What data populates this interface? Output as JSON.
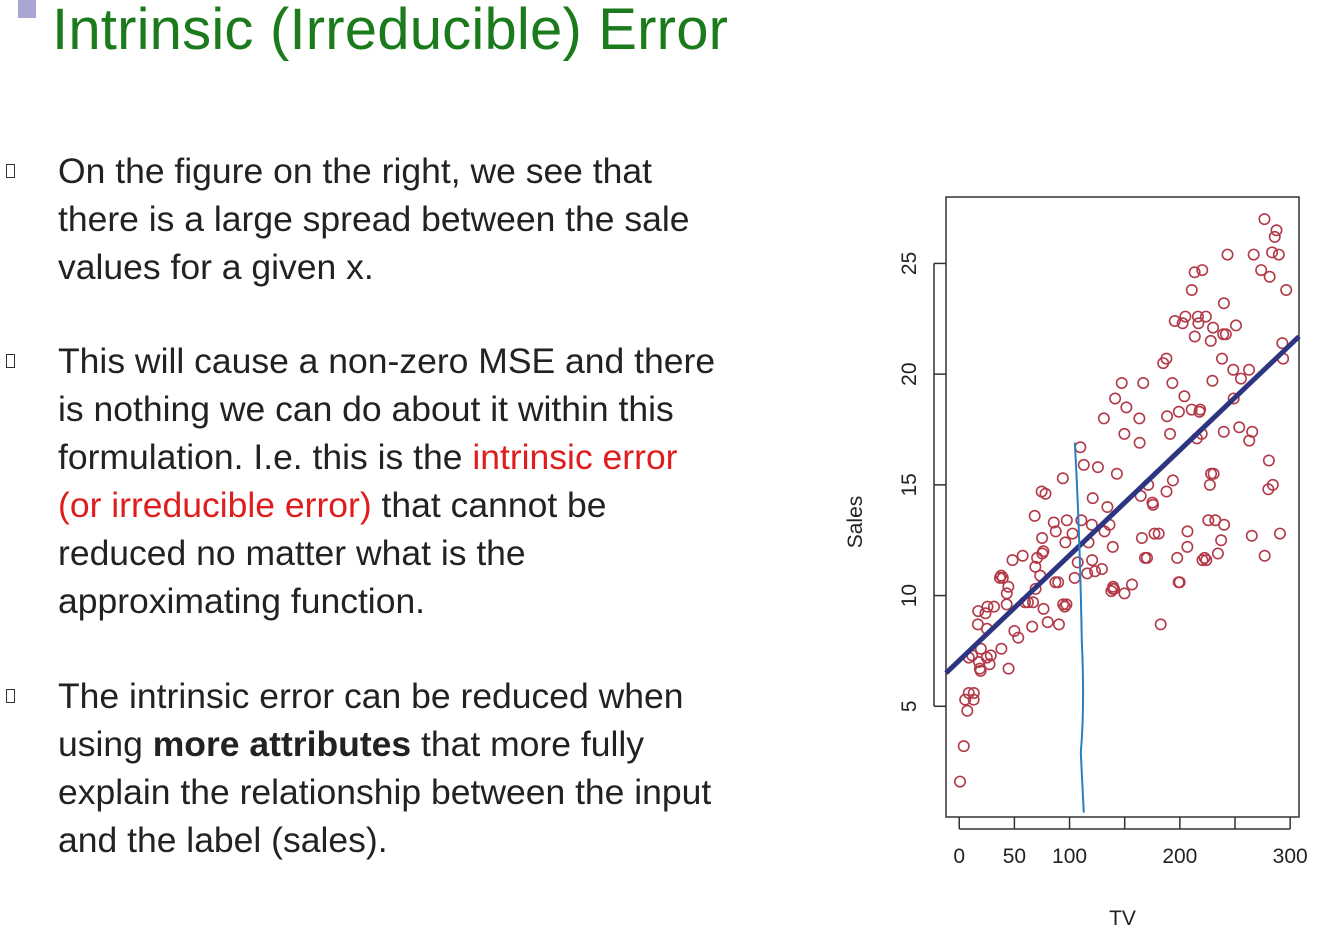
{
  "slide": {
    "title": "Intrinsic (Irreducible) Error",
    "bullets": [
      {
        "lines": [
          [
            {
              "text": "On the figure on the right, we see that"
            }
          ],
          [
            {
              "text": "there is a large spread between the sale"
            }
          ],
          [
            {
              "text": "values for a given x."
            }
          ]
        ]
      },
      {
        "lines": [
          [
            {
              "text": "This will cause a non-zero MSE and there"
            }
          ],
          [
            {
              "text": "is nothing we can do about it within this"
            }
          ],
          [
            {
              "text": "formulation. I.e. this is the "
            },
            {
              "text": "intrinsic error",
              "style": "red"
            }
          ],
          [
            {
              "text": "(or irreducible error)",
              "style": "red"
            },
            {
              "text": " that cannot be"
            }
          ],
          [
            {
              "text": "reduced no matter what is the"
            }
          ],
          [
            {
              "text": "approximating function."
            }
          ]
        ]
      },
      {
        "lines": [
          [
            {
              "text": "The intrinsic error can be reduced when"
            }
          ],
          [
            {
              "text": "using "
            },
            {
              "text": "more attributes",
              "style": "bold"
            },
            {
              "text": " that more fully"
            }
          ],
          [
            {
              "text": "explain the relationship between the input"
            }
          ],
          [
            {
              "text": "and the label (sales)."
            }
          ]
        ]
      }
    ]
  },
  "colors": {
    "title": "#1b7a1b",
    "highlight": "#e01d1d",
    "points": "#b23a48",
    "fit_line": "#2e3580",
    "spread_line": "#2a7fc0"
  },
  "chart_data": {
    "type": "scatter",
    "xlabel": "TV",
    "ylabel": "Sales",
    "xlim": [
      -12,
      308
    ],
    "ylim": [
      0,
      28
    ],
    "xticks": [
      0,
      50,
      100,
      150,
      200,
      250,
      300
    ],
    "xtick_labels": [
      "0",
      "50",
      "100",
      "",
      "200",
      "",
      "300"
    ],
    "yticks": [
      5,
      10,
      15,
      20,
      25
    ],
    "ytick_labels": [
      "5",
      "10",
      "15",
      "20",
      "25"
    ],
    "grid": false,
    "fit_line": {
      "x": [
        -12,
        308
      ],
      "y": [
        6.5,
        21.7
      ]
    },
    "spread_line": {
      "x": 112,
      "y_top": 17.0,
      "y_bottom": 0.2
    },
    "points": [
      [
        0.7,
        1.6
      ],
      [
        4.1,
        3.2
      ],
      [
        5.4,
        5.3
      ],
      [
        7.3,
        4.8
      ],
      [
        8.6,
        5.6
      ],
      [
        8.7,
        7.2
      ],
      [
        11.7,
        7.3
      ],
      [
        13.1,
        5.3
      ],
      [
        13.2,
        5.6
      ],
      [
        16.9,
        8.7
      ],
      [
        17.2,
        9.3
      ],
      [
        17.9,
        7.0
      ],
      [
        18.7,
        6.7
      ],
      [
        19.4,
        6.6
      ],
      [
        19.6,
        7.6
      ],
      [
        23.8,
        9.2
      ],
      [
        25.0,
        7.2
      ],
      [
        25.1,
        8.5
      ],
      [
        25.6,
        9.5
      ],
      [
        27.5,
        6.9
      ],
      [
        28.6,
        7.3
      ],
      [
        31.5,
        9.5
      ],
      [
        36.9,
        10.8
      ],
      [
        38.0,
        10.9
      ],
      [
        38.2,
        7.6
      ],
      [
        39.5,
        10.8
      ],
      [
        43.0,
        9.6
      ],
      [
        43.1,
        10.1
      ],
      [
        44.5,
        10.4
      ],
      [
        44.7,
        6.7
      ],
      [
        48.3,
        11.6
      ],
      [
        50.0,
        8.4
      ],
      [
        53.5,
        8.1
      ],
      [
        57.5,
        11.8
      ],
      [
        59.6,
        9.7
      ],
      [
        62.3,
        9.7
      ],
      [
        66.1,
        8.6
      ],
      [
        66.9,
        9.7
      ],
      [
        68.4,
        13.6
      ],
      [
        69.0,
        11.3
      ],
      [
        69.2,
        10.3
      ],
      [
        70.6,
        11.7
      ],
      [
        73.4,
        10.9
      ],
      [
        74.7,
        14.7
      ],
      [
        75.1,
        12.6
      ],
      [
        75.3,
        11.9
      ],
      [
        76.3,
        12.0
      ],
      [
        76.4,
        9.4
      ],
      [
        78.2,
        14.6
      ],
      [
        80.2,
        8.8
      ],
      [
        85.7,
        13.3
      ],
      [
        87.2,
        10.6
      ],
      [
        87.5,
        12.9
      ],
      [
        89.7,
        10.6
      ],
      [
        90.4,
        8.7
      ],
      [
        93.9,
        15.3
      ],
      [
        94.2,
        9.6
      ],
      [
        95.7,
        9.5
      ],
      [
        96.2,
        12.4
      ],
      [
        97.2,
        9.6
      ],
      [
        97.5,
        13.4
      ],
      [
        102.7,
        12.8
      ],
      [
        104.6,
        10.8
      ],
      [
        107.4,
        11.5
      ],
      [
        109.8,
        16.7
      ],
      [
        110.7,
        13.4
      ],
      [
        112.9,
        15.9
      ],
      [
        116.0,
        11.0
      ],
      [
        117.2,
        12.4
      ],
      [
        120.2,
        13.2
      ],
      [
        120.5,
        11.6
      ],
      [
        121.0,
        14.4
      ],
      [
        123.1,
        11.1
      ],
      [
        125.7,
        15.8
      ],
      [
        129.4,
        11.2
      ],
      [
        131.1,
        18.0
      ],
      [
        131.7,
        12.9
      ],
      [
        134.3,
        14.0
      ],
      [
        136.2,
        13.2
      ],
      [
        137.9,
        10.2
      ],
      [
        139.2,
        12.2
      ],
      [
        139.3,
        10.3
      ],
      [
        139.5,
        10.4
      ],
      [
        140.3,
        10.3
      ],
      [
        141.3,
        18.9
      ],
      [
        142.9,
        15.5
      ],
      [
        147.3,
        19.6
      ],
      [
        149.7,
        17.3
      ],
      [
        149.8,
        10.1
      ],
      [
        151.5,
        18.5
      ],
      [
        156.6,
        10.5
      ],
      [
        163.3,
        18.0
      ],
      [
        163.5,
        16.9
      ],
      [
        164.5,
        14.5
      ],
      [
        165.6,
        12.6
      ],
      [
        166.8,
        19.6
      ],
      [
        168.4,
        11.7
      ],
      [
        170.2,
        11.7
      ],
      [
        171.3,
        15.0
      ],
      [
        175.1,
        14.2
      ],
      [
        175.7,
        14.1
      ],
      [
        177.0,
        12.8
      ],
      [
        180.8,
        12.8
      ],
      [
        182.6,
        8.7
      ],
      [
        184.9,
        20.5
      ],
      [
        187.8,
        20.7
      ],
      [
        187.9,
        14.7
      ],
      [
        188.4,
        18.1
      ],
      [
        191.1,
        17.3
      ],
      [
        193.2,
        19.6
      ],
      [
        193.7,
        15.2
      ],
      [
        195.4,
        22.4
      ],
      [
        197.6,
        11.7
      ],
      [
        198.9,
        10.6
      ],
      [
        199.1,
        18.3
      ],
      [
        199.8,
        10.6
      ],
      [
        202.5,
        22.3
      ],
      [
        204.1,
        19.0
      ],
      [
        205.0,
        22.6
      ],
      [
        206.8,
        12.2
      ],
      [
        206.9,
        12.9
      ],
      [
        210.7,
        18.4
      ],
      [
        210.8,
        23.8
      ],
      [
        213.4,
        24.6
      ],
      [
        213.5,
        21.7
      ],
      [
        215.4,
        17.1
      ],
      [
        216.4,
        22.6
      ],
      [
        216.8,
        22.3
      ],
      [
        217.7,
        18.3
      ],
      [
        218.4,
        18.4
      ],
      [
        219.8,
        17.3
      ],
      [
        220.3,
        24.7
      ],
      [
        220.5,
        11.6
      ],
      [
        222.4,
        11.7
      ],
      [
        223.6,
        22.6
      ],
      [
        224.0,
        11.6
      ],
      [
        225.8,
        13.4
      ],
      [
        227.2,
        15.0
      ],
      [
        228.0,
        21.5
      ],
      [
        228.3,
        15.5
      ],
      [
        229.5,
        19.7
      ],
      [
        230.1,
        22.1
      ],
      [
        230.6,
        15.5
      ],
      [
        232.1,
        13.4
      ],
      [
        234.5,
        11.9
      ],
      [
        237.4,
        12.5
      ],
      [
        238.2,
        20.7
      ],
      [
        239.3,
        21.8
      ],
      [
        239.8,
        17.4
      ],
      [
        239.9,
        23.2
      ],
      [
        240.1,
        13.2
      ],
      [
        241.7,
        21.8
      ],
      [
        243.2,
        25.4
      ],
      [
        248.4,
        20.2
      ],
      [
        248.8,
        18.9
      ],
      [
        250.9,
        22.2
      ],
      [
        253.8,
        17.6
      ],
      [
        255.4,
        19.8
      ],
      [
        262.7,
        20.2
      ],
      [
        262.9,
        17.0
      ],
      [
        265.2,
        12.7
      ],
      [
        265.6,
        17.4
      ],
      [
        266.9,
        25.4
      ],
      [
        273.7,
        24.7
      ],
      [
        276.7,
        27.0
      ],
      [
        276.9,
        11.8
      ],
      [
        280.2,
        14.8
      ],
      [
        280.7,
        16.1
      ],
      [
        281.4,
        24.4
      ],
      [
        283.6,
        25.5
      ],
      [
        284.3,
        15.0
      ],
      [
        286.0,
        26.2
      ],
      [
        287.6,
        26.5
      ],
      [
        289.7,
        25.4
      ],
      [
        290.7,
        12.8
      ],
      [
        292.9,
        21.4
      ],
      [
        293.6,
        20.7
      ],
      [
        296.4,
        23.8
      ]
    ]
  }
}
